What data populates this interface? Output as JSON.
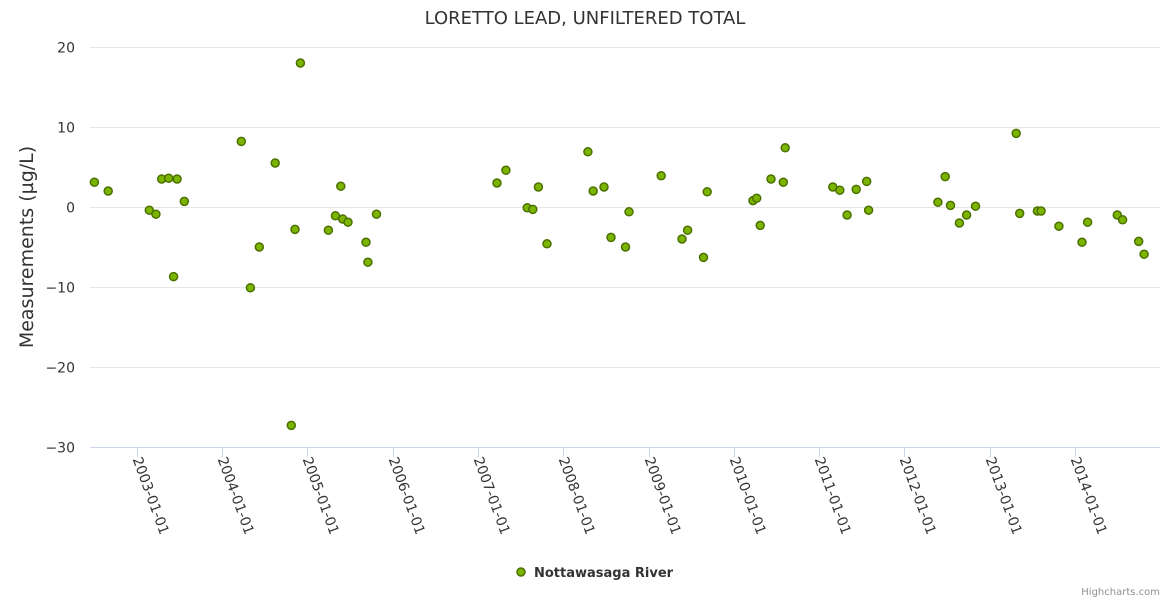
{
  "chart_data": {
    "type": "scatter",
    "title": "LORETTO LEAD, UNFILTERED TOTAL",
    "ylabel": "Measurements (µg/L)",
    "xlabel": "",
    "ylim": [
      -30,
      20
    ],
    "yticks": [
      -30,
      -20,
      -10,
      0,
      10,
      20
    ],
    "ytick_labels": [
      "−30",
      "−20",
      "−10",
      "0",
      "10",
      "20"
    ],
    "xlim": [
      "2002-06-15",
      "2014-12-31"
    ],
    "xticks": [
      "2003-01-01",
      "2004-01-01",
      "2005-01-01",
      "2006-01-01",
      "2007-01-01",
      "2008-01-01",
      "2009-01-01",
      "2010-01-01",
      "2011-01-01",
      "2012-01-01",
      "2013-01-01",
      "2014-01-01"
    ],
    "grid": true,
    "legend_position": "bottom-center",
    "series": [
      {
        "name": "Nottawasaga River",
        "color": "#7cb500",
        "outline": "#4a7000",
        "points": [
          [
            "2002-07-04",
            3.1
          ],
          [
            "2002-09-01",
            2.0
          ],
          [
            "2003-02-24",
            -0.4
          ],
          [
            "2003-03-24",
            -0.9
          ],
          [
            "2003-04-18",
            3.5
          ],
          [
            "2003-05-18",
            3.6
          ],
          [
            "2003-06-08",
            -8.7
          ],
          [
            "2003-06-23",
            3.5
          ],
          [
            "2003-07-24",
            0.7
          ],
          [
            "2004-03-24",
            8.2
          ],
          [
            "2004-05-02",
            -10.1
          ],
          [
            "2004-06-09",
            -5.0
          ],
          [
            "2004-08-16",
            5.5
          ],
          [
            "2004-10-24",
            -27.3
          ],
          [
            "2004-11-09",
            -2.8
          ],
          [
            "2004-12-02",
            18.0
          ],
          [
            "2005-04-01",
            -2.9
          ],
          [
            "2005-05-01",
            -1.1
          ],
          [
            "2005-05-24",
            2.6
          ],
          [
            "2005-06-01",
            -1.5
          ],
          [
            "2005-06-24",
            -1.9
          ],
          [
            "2005-09-09",
            -4.4
          ],
          [
            "2005-09-17",
            -6.9
          ],
          [
            "2005-10-24",
            -0.9
          ],
          [
            "2007-03-24",
            3.0
          ],
          [
            "2007-05-01",
            4.6
          ],
          [
            "2007-07-31",
            -0.1
          ],
          [
            "2007-08-24",
            -0.3
          ],
          [
            "2007-09-17",
            2.5
          ],
          [
            "2007-10-24",
            -4.6
          ],
          [
            "2008-04-16",
            6.9
          ],
          [
            "2008-05-09",
            2.0
          ],
          [
            "2008-06-24",
            2.5
          ],
          [
            "2008-07-24",
            -3.8
          ],
          [
            "2008-09-24",
            -5.0
          ],
          [
            "2008-10-09",
            -0.6
          ],
          [
            "2009-02-24",
            3.9
          ],
          [
            "2009-05-24",
            -4.0
          ],
          [
            "2009-06-17",
            -2.9
          ],
          [
            "2009-08-24",
            -6.3
          ],
          [
            "2009-09-09",
            1.9
          ],
          [
            "2010-03-24",
            0.8
          ],
          [
            "2010-04-09",
            1.1
          ],
          [
            "2010-04-24",
            -2.3
          ],
          [
            "2010-06-09",
            3.5
          ],
          [
            "2010-08-01",
            3.1
          ],
          [
            "2010-08-09",
            7.4
          ],
          [
            "2011-03-01",
            2.5
          ],
          [
            "2011-03-31",
            2.1
          ],
          [
            "2011-05-01",
            -1.0
          ],
          [
            "2011-06-09",
            2.2
          ],
          [
            "2011-07-24",
            3.2
          ],
          [
            "2011-08-01",
            -0.4
          ],
          [
            "2012-05-24",
            0.6
          ],
          [
            "2012-06-24",
            3.8
          ],
          [
            "2012-07-17",
            0.2
          ],
          [
            "2012-08-24",
            -2.0
          ],
          [
            "2012-09-24",
            -1.0
          ],
          [
            "2012-11-01",
            0.1
          ],
          [
            "2013-04-24",
            9.2
          ],
          [
            "2013-05-09",
            -0.8
          ],
          [
            "2013-07-24",
            -0.5
          ],
          [
            "2013-08-09",
            -0.5
          ],
          [
            "2013-10-24",
            -2.4
          ],
          [
            "2014-01-31",
            -4.4
          ],
          [
            "2014-02-24",
            -1.9
          ],
          [
            "2014-07-01",
            -1.0
          ],
          [
            "2014-07-24",
            -1.6
          ],
          [
            "2014-10-01",
            -4.3
          ],
          [
            "2014-10-24",
            -5.9
          ]
        ]
      }
    ]
  },
  "credits": "Highcharts.com"
}
